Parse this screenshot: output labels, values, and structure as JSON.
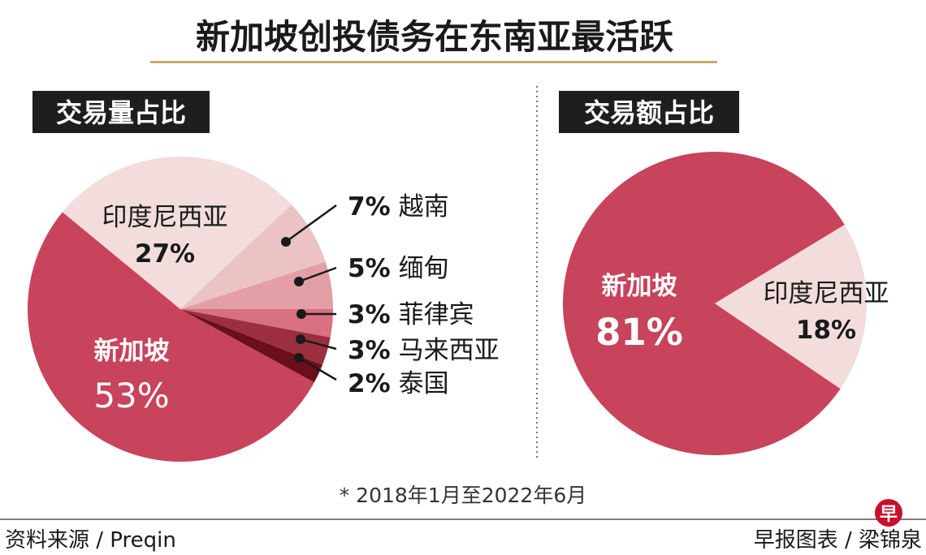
{
  "title": "新加坡创投债务在东南亚最活跃",
  "note": "* 2018年1月至2022年6月",
  "footer": {
    "source": "资料来源 / Preqin",
    "credit": "早报图表 / 梁锦泉",
    "logo_char": "早"
  },
  "colors": {
    "singapore": "#c8435c",
    "indonesia": "#f3dcdc",
    "vietnam": "#ebc3c5",
    "myanmar": "#e39ea6",
    "philippines": "#d7707f",
    "malaysia": "#9c2f3f",
    "thailand": "#6b0f1c",
    "label_box": "#1e1e1e",
    "gold_rule": "#c9a86a",
    "logo": "#c8102e"
  },
  "chart_data": [
    {
      "type": "pie",
      "title": "交易量占比",
      "unit": "%",
      "slices": [
        {
          "name": "新加坡",
          "value": 53,
          "label": "53%",
          "color_key": "singapore"
        },
        {
          "name": "印度尼西亚",
          "value": 27,
          "label": "27%",
          "color_key": "indonesia"
        },
        {
          "name": "越南",
          "value": 7,
          "label": "7%",
          "color_key": "vietnam"
        },
        {
          "name": "缅甸",
          "value": 5,
          "label": "5%",
          "color_key": "myanmar"
        },
        {
          "name": "菲律宾",
          "value": 3,
          "label": "3%",
          "color_key": "philippines"
        },
        {
          "name": "马来西亚",
          "value": 3,
          "label": "3%",
          "color_key": "malaysia"
        },
        {
          "name": "泰国",
          "value": 2,
          "label": "2%",
          "color_key": "thailand"
        }
      ]
    },
    {
      "type": "pie",
      "title": "交易额占比",
      "unit": "%",
      "slices": [
        {
          "name": "新加坡",
          "value": 81,
          "label": "81%",
          "color_key": "singapore"
        },
        {
          "name": "印度尼西亚",
          "value": 18,
          "label": "18%",
          "color_key": "indonesia"
        }
      ]
    }
  ]
}
